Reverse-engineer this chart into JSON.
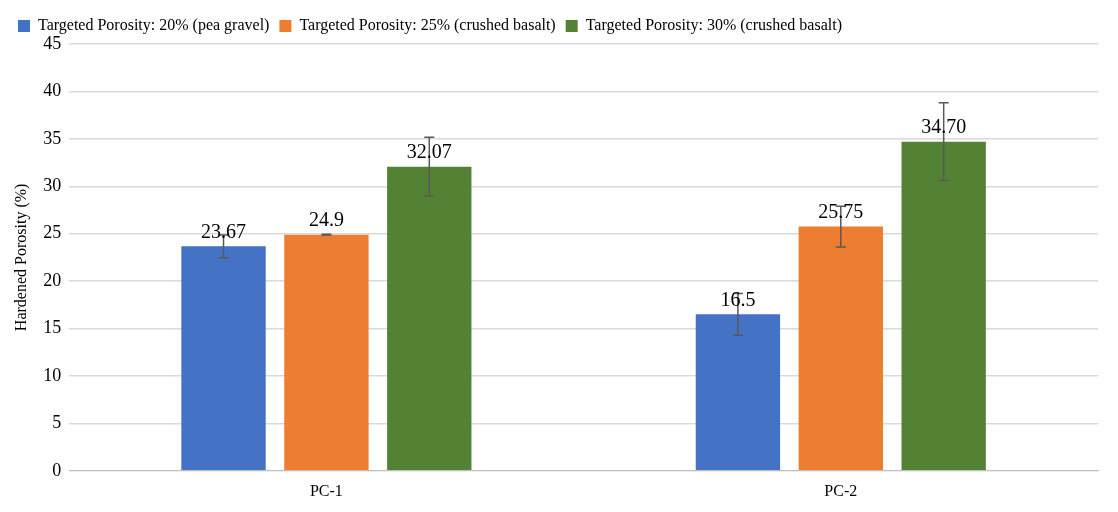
{
  "chart_data": {
    "type": "bar",
    "ylabel": "Hardened Porosity (%)",
    "categories": [
      "PC-1",
      "PC-2"
    ],
    "series": [
      {
        "name": "Targeted Porosity: 20% (pea gravel)",
        "color": "#4472c4",
        "values": [
          23.67,
          16.5
        ],
        "errors": [
          1.2,
          2.2
        ],
        "value_labels": [
          "23.67",
          "16.5"
        ]
      },
      {
        "name": "Targeted Porosity: 25% (crushed basalt)",
        "color": "#ed7d31",
        "values": [
          24.9,
          25.75
        ],
        "errors": [
          0.05,
          2.15
        ],
        "value_labels": [
          "24.9",
          "25.75"
        ]
      },
      {
        "name": "Targeted Porosity: 30% (crushed basalt)",
        "color": "#548235",
        "values": [
          32.07,
          34.7
        ],
        "errors": [
          3.1,
          4.1
        ],
        "value_labels": [
          "32.07",
          "34.70"
        ]
      }
    ],
    "ylim": [
      0,
      45
    ],
    "yticks": [
      0,
      5,
      10,
      15,
      20,
      25,
      30,
      35,
      40,
      45
    ],
    "grid": "y",
    "legend": "top"
  }
}
